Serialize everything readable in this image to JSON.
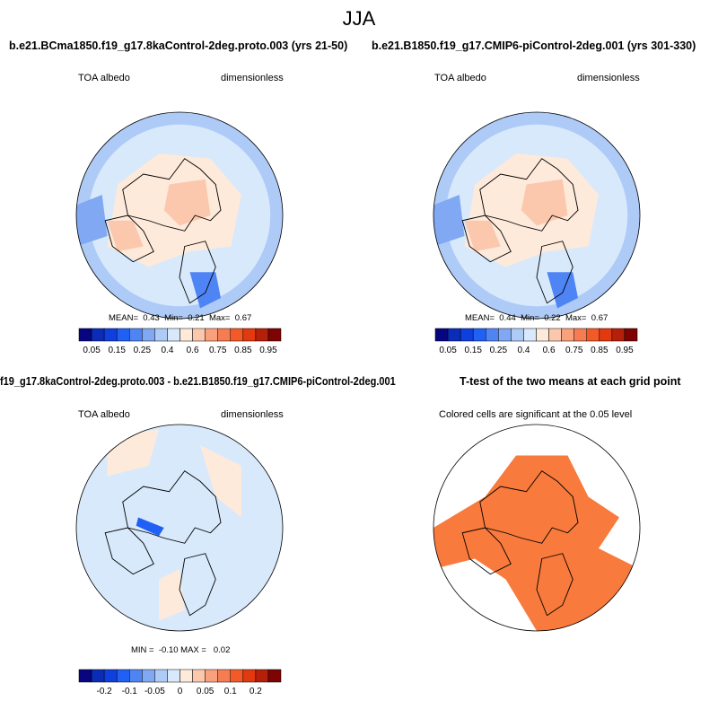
{
  "figure_title": "JJA",
  "panels": [
    {
      "title": "b.e21.BCma1850.f19_g17.8kaControl-2deg.proto.003 (yrs 21-50)",
      "left_label": "TOA albedo",
      "right_label": "dimensionless",
      "stats": {
        "mean_label": "MEAN=",
        "mean": "0.43",
        "min_label": "Min=",
        "min": "0.21",
        "max_label": "Max=",
        "max": "0.67"
      }
    },
    {
      "title": "b.e21.B1850.f19_g17.CMIP6-piControl-2deg.001 (yrs 301-330)",
      "left_label": "TOA albedo",
      "right_label": "dimensionless",
      "stats": {
        "mean_label": "MEAN=",
        "mean": "0.44",
        "min_label": "Min=",
        "min": "0.22",
        "max_label": "Max=",
        "max": "0.67"
      }
    },
    {
      "title": "f19_g17.8kaControl-2deg.proto.003 - b.e21.B1850.f19_g17.CMIP6-piControl-2deg.001",
      "left_label": "TOA albedo",
      "right_label": "dimensionless",
      "stats": {
        "text": "MIN =  -0.10 MAX =   0.02"
      }
    },
    {
      "title": "T-test of the two means at each grid point",
      "subtitle": "Colored cells are significant at the 0.05 level"
    }
  ],
  "colorbars": {
    "abs_labels": [
      "0.05",
      "0.15",
      "0.25",
      "0.4",
      "0.6",
      "0.75",
      "0.85",
      "0.95"
    ],
    "diff_labels": [
      "-0.2",
      "-0.1",
      "-0.05",
      "0",
      "0.05",
      "0.1",
      "0.2"
    ],
    "colors": [
      "#08067e",
      "#0b2cb8",
      "#0f3fde",
      "#2160f4",
      "#4f84f5",
      "#80a8f3",
      "#aecbf7",
      "#d8e9fc",
      "#fdeadb",
      "#fcc8ad",
      "#f9a17d",
      "#f67d53",
      "#f45a28",
      "#e2390f",
      "#b5200a",
      "#7e0303"
    ]
  },
  "chart_data": [
    {
      "type": "heatmap",
      "projection": "north-polar-stereographic",
      "variable": "TOA albedo",
      "units": "dimensionless",
      "mean": 0.43,
      "min": 0.21,
      "max": 0.67
    },
    {
      "type": "heatmap",
      "projection": "north-polar-stereographic",
      "variable": "TOA albedo",
      "units": "dimensionless",
      "mean": 0.44,
      "min": 0.22,
      "max": 0.67
    },
    {
      "type": "heatmap",
      "projection": "north-polar-stereographic",
      "variable": "TOA albedo difference",
      "units": "dimensionless",
      "min": -0.1,
      "max": 0.02
    },
    {
      "type": "heatmap",
      "projection": "north-polar-stereographic",
      "variable": "significance mask",
      "significance_color": "#f87a3c"
    }
  ]
}
